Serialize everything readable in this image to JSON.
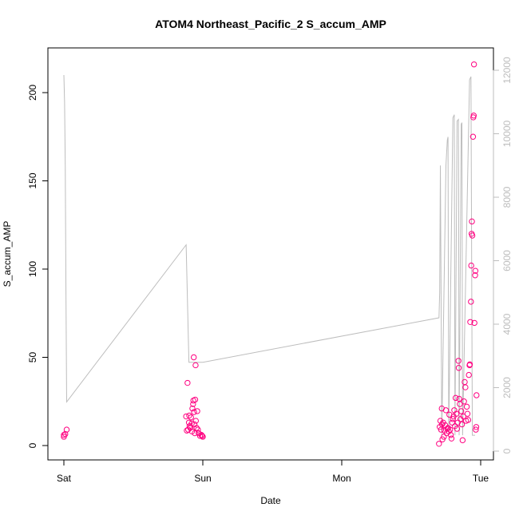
{
  "chart_data": {
    "type": "scatter",
    "title": "ATOM4 Northeast_Pacific_2 S_accum_AMP",
    "xlabel": "Date",
    "ylabel": "S_accum_AMP",
    "x_ticks": [
      "Sat",
      "Sun",
      "Mon",
      "Tue"
    ],
    "x_domain_days": [
      0,
      3.08
    ],
    "ylim": [
      0,
      220
    ],
    "y_ticks": [
      0,
      50,
      100,
      150,
      200
    ],
    "y2lim": [
      0,
      12100
    ],
    "y2_ticks": [
      0,
      2000,
      4000,
      6000,
      8000,
      10000,
      12000
    ],
    "colors": {
      "points": "#ff0080",
      "line": "#bdbdbd",
      "axis": "#000000",
      "right_axis": "#bdbdbd"
    },
    "series": [
      {
        "type": "points",
        "points": [
          [
            0.0,
            5.0
          ],
          [
            0.01,
            6.5
          ],
          [
            0.02,
            9.0
          ],
          [
            0.0,
            6.0
          ],
          [
            0.88,
            16.5
          ],
          [
            0.885,
            8.5
          ],
          [
            0.89,
            35.5
          ],
          [
            0.895,
            9.0
          ],
          [
            0.9,
            13.0
          ],
          [
            0.902,
            17.0
          ],
          [
            0.905,
            11.0
          ],
          [
            0.91,
            10.0
          ],
          [
            0.915,
            16.0
          ],
          [
            0.92,
            12.5
          ],
          [
            0.922,
            8.0
          ],
          [
            0.925,
            21.0
          ],
          [
            0.93,
            23.5
          ],
          [
            0.932,
            25.5
          ],
          [
            0.935,
            50.0
          ],
          [
            0.937,
            19.0
          ],
          [
            0.94,
            12.0
          ],
          [
            0.942,
            7.0
          ],
          [
            0.945,
            26.0
          ],
          [
            0.948,
            45.5
          ],
          [
            0.95,
            14.0
          ],
          [
            0.955,
            10.0
          ],
          [
            0.96,
            19.5
          ],
          [
            0.965,
            9.0
          ],
          [
            0.97,
            7.0
          ],
          [
            0.98,
            5.5
          ],
          [
            0.99,
            6.0
          ],
          [
            1.0,
            5.0
          ],
          [
            0.995,
            5.5
          ],
          [
            2.7,
            1.0
          ],
          [
            2.705,
            10.5
          ],
          [
            2.71,
            14.0
          ],
          [
            2.715,
            9.0
          ],
          [
            2.72,
            21.0
          ],
          [
            2.722,
            12.0
          ],
          [
            2.725,
            3.5
          ],
          [
            2.73,
            13.0
          ],
          [
            2.735,
            5.0
          ],
          [
            2.74,
            8.5
          ],
          [
            2.745,
            11.5
          ],
          [
            2.75,
            20.0
          ],
          [
            2.755,
            7.0
          ],
          [
            2.76,
            9.5
          ],
          [
            2.765,
            10.0
          ],
          [
            2.77,
            8.0
          ],
          [
            2.775,
            17.5
          ],
          [
            2.78,
            9.0
          ],
          [
            2.785,
            6.0
          ],
          [
            2.79,
            4.0
          ],
          [
            2.795,
            13.0
          ],
          [
            2.8,
            15.0
          ],
          [
            2.805,
            16.5
          ],
          [
            2.81,
            20.0
          ],
          [
            2.815,
            11.0
          ],
          [
            2.82,
            27.0
          ],
          [
            2.825,
            18.0
          ],
          [
            2.83,
            9.5
          ],
          [
            2.835,
            13.0
          ],
          [
            2.84,
            48.0
          ],
          [
            2.842,
            44.0
          ],
          [
            2.845,
            26.5
          ],
          [
            2.85,
            23.5
          ],
          [
            2.855,
            15.0
          ],
          [
            2.86,
            19.5
          ],
          [
            2.865,
            12.0
          ],
          [
            2.87,
            3.0
          ],
          [
            2.875,
            16.5
          ],
          [
            2.88,
            25.0
          ],
          [
            2.885,
            36.0
          ],
          [
            2.89,
            33.0
          ],
          [
            2.895,
            14.0
          ],
          [
            2.9,
            22.0
          ],
          [
            2.905,
            18.0
          ],
          [
            2.91,
            14.5
          ],
          [
            2.915,
            40.0
          ],
          [
            2.92,
            45.5
          ],
          [
            2.922,
            46.0
          ],
          [
            2.925,
            70.0
          ],
          [
            2.93,
            81.5
          ],
          [
            2.932,
            102.0
          ],
          [
            2.935,
            120.0
          ],
          [
            2.937,
            127.0
          ],
          [
            2.94,
            119.0
          ],
          [
            2.945,
            175.0
          ],
          [
            2.947,
            186.0
          ],
          [
            2.95,
            187.0
          ],
          [
            2.952,
            216.0
          ],
          [
            2.955,
            69.5
          ],
          [
            2.96,
            96.5
          ],
          [
            2.962,
            99.0
          ],
          [
            2.965,
            9.0
          ],
          [
            2.968,
            10.5
          ],
          [
            2.97,
            28.5
          ]
        ]
      },
      {
        "type": "line",
        "axis": "right",
        "points": [
          [
            0.0,
            11850
          ],
          [
            0.005,
            11000
          ],
          [
            0.01,
            9000
          ],
          [
            0.015,
            5000
          ],
          [
            0.02,
            1550
          ],
          [
            0.88,
            6500
          ],
          [
            0.9,
            2800
          ],
          [
            1.0,
            2800
          ],
          [
            2.7,
            4200
          ],
          [
            2.705,
            5000
          ],
          [
            2.71,
            9000
          ],
          [
            2.715,
            5000
          ],
          [
            2.72,
            500
          ],
          [
            2.75,
            9000
          ],
          [
            2.76,
            9800
          ],
          [
            2.765,
            9900
          ],
          [
            2.77,
            500
          ],
          [
            2.8,
            10500
          ],
          [
            2.81,
            10600
          ],
          [
            2.815,
            500
          ],
          [
            2.83,
            10400
          ],
          [
            2.84,
            10450
          ],
          [
            2.845,
            500
          ],
          [
            2.86,
            10300
          ],
          [
            2.865,
            10350
          ],
          [
            2.87,
            500
          ],
          [
            2.92,
            11700
          ],
          [
            2.93,
            11800
          ],
          [
            2.94,
            500
          ],
          [
            2.96,
            500
          ]
        ]
      }
    ]
  }
}
